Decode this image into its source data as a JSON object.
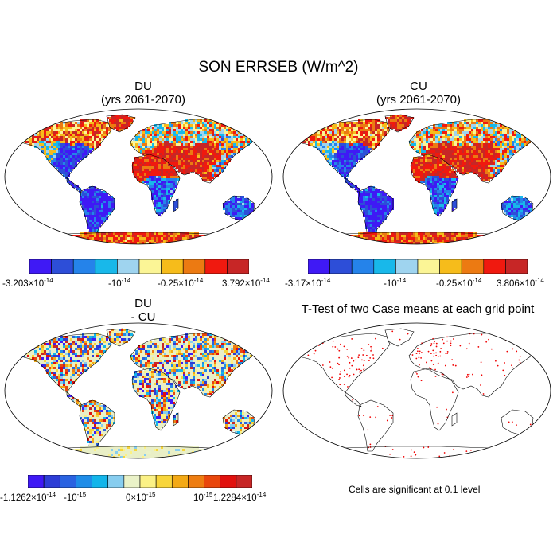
{
  "figure": {
    "title": "SON ERRSEB (W/m^2)"
  },
  "colors": {
    "scale10": [
      "#3f19f5",
      "#2d4ed8",
      "#2583ea",
      "#18b8ea",
      "#9fd4ef",
      "#fbf596",
      "#f6bc1b",
      "#ec7a12",
      "#f0190f",
      "#c72626"
    ],
    "scale14": [
      "#3f19f5",
      "#2d3dd6",
      "#2a63e1",
      "#1f8de8",
      "#13b5ea",
      "#87cdef",
      "#eaf2c8",
      "#fbf186",
      "#f8d53a",
      "#f3a915",
      "#ee7d11",
      "#e9470c",
      "#e1110e",
      "#c72626"
    ],
    "land_neutral": "#e9efc6",
    "significance_dot": "#f00000"
  },
  "panels": [
    {
      "id": "du",
      "title_line1": "DU",
      "title_line2": "(yrs 2061-2070)",
      "colorbar": {
        "labels": [
          {
            "mant": "-3.203",
            "times": true,
            "exp": "-14"
          },
          {
            "mant": "-10",
            "times": false,
            "exp": "-14"
          },
          {
            "mant": "-0.25",
            "times": true,
            "exp": "-14"
          },
          {
            "mant": "3.792",
            "times": true,
            "exp": "-14"
          }
        ]
      }
    },
    {
      "id": "cu",
      "title_line1": "CU",
      "title_line2": "(yrs 2061-2070)",
      "colorbar": {
        "labels": [
          {
            "mant": "-3.17",
            "times": true,
            "exp": "-14"
          },
          {
            "mant": "-10",
            "times": false,
            "exp": "-14"
          },
          {
            "mant": "-0.25",
            "times": true,
            "exp": "-14"
          },
          {
            "mant": "3.806",
            "times": true,
            "exp": "-14"
          }
        ]
      }
    },
    {
      "id": "diff",
      "title_line1": "DU",
      "title_line2": "- CU",
      "colorbar": {
        "labels": [
          {
            "mant": "-1.1262",
            "times": true,
            "exp": "-14"
          },
          {
            "mant": "-10",
            "times": false,
            "exp": "-15"
          },
          {
            "mant": "0",
            "times": true,
            "exp": "-15"
          },
          {
            "mant": "10",
            "times": false,
            "exp": "-15"
          },
          {
            "mant": "1.2284",
            "times": true,
            "exp": "-14"
          }
        ]
      }
    },
    {
      "id": "ttest",
      "title_line1": "T-Test of two Case means at each grid point",
      "note": "Cells are significant at 0.1 level"
    }
  ],
  "chart_data": [
    {
      "type": "heatmap",
      "panel": "DU (yrs 2061-2070)",
      "projection": "Robinson",
      "colorbar_range": [
        -3.203e-14,
        3.792e-14
      ],
      "colorbar_ticks": [
        "-3.203×10^-14",
        "-10^-14",
        "-0.25×10^-14",
        "3.792×10^-14"
      ],
      "regions": [
        {
          "region": "South America",
          "tone": "strong negative"
        },
        {
          "region": "Central/Southern Africa",
          "tone": "strong negative"
        },
        {
          "region": "Australia",
          "tone": "negative"
        },
        {
          "region": "Eastern North America",
          "tone": "negative"
        },
        {
          "region": "Sahara / Arabia",
          "tone": "strong positive"
        },
        {
          "region": "India / South Asia",
          "tone": "strong positive"
        },
        {
          "region": "Northern Eurasia",
          "tone": "mixed near zero"
        },
        {
          "region": "Antarctica",
          "tone": "positive"
        }
      ]
    },
    {
      "type": "heatmap",
      "panel": "CU (yrs 2061-2070)",
      "projection": "Robinson",
      "colorbar_range": [
        -3.17e-14,
        3.806e-14
      ],
      "colorbar_ticks": [
        "-3.17×10^-14",
        "-10^-14",
        "-0.25×10^-14",
        "3.806×10^-14"
      ],
      "regions": [
        {
          "region": "South America",
          "tone": "strong negative"
        },
        {
          "region": "Central/Southern Africa",
          "tone": "strong negative"
        },
        {
          "region": "Australia",
          "tone": "negative"
        },
        {
          "region": "Eastern North America",
          "tone": "negative"
        },
        {
          "region": "Sahara / Arabia",
          "tone": "strong positive"
        },
        {
          "region": "India / South Asia",
          "tone": "strong positive"
        },
        {
          "region": "Northern Eurasia",
          "tone": "mixed near zero"
        },
        {
          "region": "Antarctica",
          "tone": "positive"
        }
      ]
    },
    {
      "type": "heatmap",
      "panel": "DU - CU",
      "projection": "Robinson",
      "colorbar_range": [
        -1.1262e-14,
        1.2284e-14
      ],
      "colorbar_ticks": [
        "-1.1262×10^-14",
        "-10^-15",
        "0×10^-15",
        "10^-15",
        "1.2284×10^-14"
      ],
      "regions": [
        {
          "region": "Global land",
          "tone": "noisy mixed around zero"
        },
        {
          "region": "Antarctica",
          "tone": "near zero"
        }
      ]
    },
    {
      "type": "scatter",
      "panel": "T-Test of two Case means at each grid point",
      "projection": "Robinson",
      "significance_level": 0.1,
      "regions": [
        {
          "region": "Eastern United States",
          "density": "high"
        },
        {
          "region": "Europe",
          "density": "high"
        },
        {
          "region": "Elsewhere on land",
          "density": "sparse"
        }
      ]
    }
  ]
}
